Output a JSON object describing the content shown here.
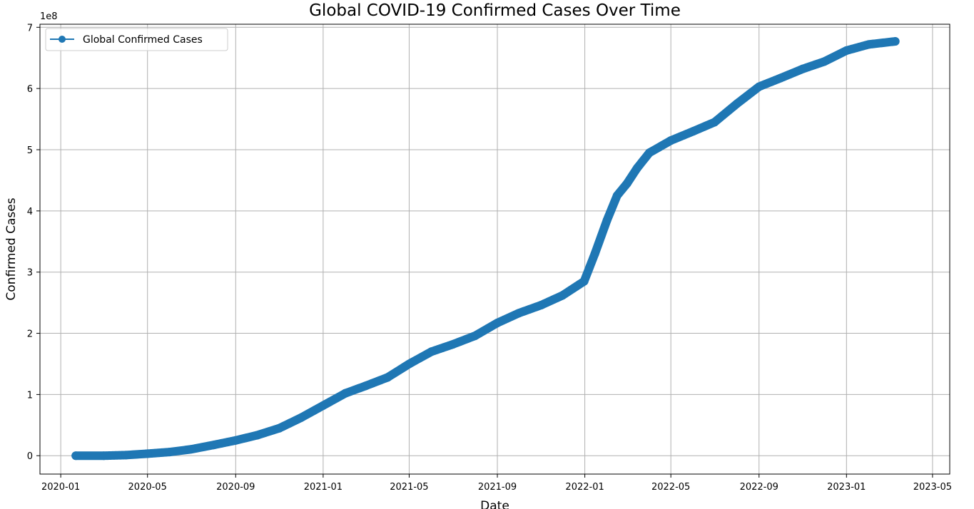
{
  "chart_data": {
    "type": "line",
    "title": "Global COVID-19 Confirmed Cases Over Time",
    "xlabel": "Date",
    "ylabel": "Confirmed Cases",
    "y_offset_label": "1e8",
    "x_ticks": [
      "2020-01",
      "2020-05",
      "2020-09",
      "2021-01",
      "2021-05",
      "2021-09",
      "2022-01",
      "2022-05",
      "2022-09",
      "2023-01",
      "2023-05"
    ],
    "y_ticks": [
      "0",
      "1",
      "2",
      "3",
      "4",
      "5",
      "6",
      "7"
    ],
    "ylim": [
      -30000000.0,
      705000000.0
    ],
    "xlim": [
      "2019-12-03",
      "2023-05-25"
    ],
    "grid": true,
    "legend_position": "top-left",
    "series": [
      {
        "name": "Global Confirmed Cases",
        "color": "#1f77b4",
        "marker": "circle",
        "points": [
          [
            "2020-01-22",
            0
          ],
          [
            "2020-03-01",
            0
          ],
          [
            "2020-04-01",
            1000000.0
          ],
          [
            "2020-05-01",
            3300000.0
          ],
          [
            "2020-06-01",
            6000000.0
          ],
          [
            "2020-07-01",
            10500000.0
          ],
          [
            "2020-08-01",
            17500000.0
          ],
          [
            "2020-09-01",
            25000000.0
          ],
          [
            "2020-10-01",
            33500000.0
          ],
          [
            "2020-11-01",
            45000000.0
          ],
          [
            "2020-12-01",
            62000000.0
          ],
          [
            "2021-01-01",
            82000000.0
          ],
          [
            "2021-02-01",
            102000000.0
          ],
          [
            "2021-03-01",
            114000000.0
          ],
          [
            "2021-04-01",
            128000000.0
          ],
          [
            "2021-05-01",
            150000000.0
          ],
          [
            "2021-06-01",
            170000000.0
          ],
          [
            "2021-07-01",
            182000000.0
          ],
          [
            "2021-08-01",
            196000000.0
          ],
          [
            "2021-09-01",
            217000000.0
          ],
          [
            "2021-10-01",
            233000000.0
          ],
          [
            "2021-11-01",
            246000000.0
          ],
          [
            "2021-12-01",
            262000000.0
          ],
          [
            "2021-12-31",
            285000000.0
          ],
          [
            "2022-01-15",
            330000000.0
          ],
          [
            "2022-02-01",
            385000000.0
          ],
          [
            "2022-02-15",
            425000000.0
          ],
          [
            "2022-03-01",
            445000000.0
          ],
          [
            "2022-03-15",
            470000000.0
          ],
          [
            "2022-04-01",
            495000000.0
          ],
          [
            "2022-05-01",
            515000000.0
          ],
          [
            "2022-06-01",
            530000000.0
          ],
          [
            "2022-07-01",
            545000000.0
          ],
          [
            "2022-08-01",
            575000000.0
          ],
          [
            "2022-09-01",
            603000000.0
          ],
          [
            "2022-10-01",
            617000000.0
          ],
          [
            "2022-11-01",
            632000000.0
          ],
          [
            "2022-12-01",
            644000000.0
          ],
          [
            "2023-01-01",
            662000000.0
          ],
          [
            "2023-02-01",
            672000000.0
          ],
          [
            "2023-03-10",
            677000000.0
          ]
        ]
      }
    ]
  }
}
